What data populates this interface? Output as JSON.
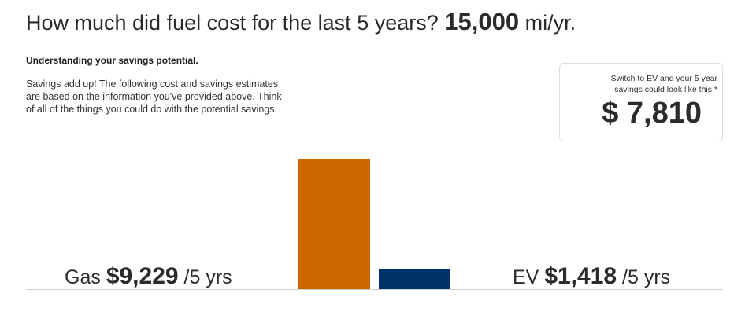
{
  "headline": {
    "question": "How much did fuel cost for the last 5 years?",
    "miles": "15,000",
    "unit": "mi/yr."
  },
  "info": {
    "heading": "Understanding your savings potential.",
    "paragraph": "Savings add up! The following cost and savings estimates are based on the information you've provided above. Think of all of the things you could do with the potential savings."
  },
  "savings_card": {
    "note": "Switch to EV and your 5 year savings could look like this:*",
    "amount": "$ 7,810"
  },
  "gas": {
    "prefix": "Gas",
    "value": "$9,229",
    "suffix": "/5 yrs"
  },
  "ev": {
    "prefix": "EV",
    "value": "$1,418",
    "suffix": "/5 yrs"
  },
  "colors": {
    "gas_bar": "#cc6600",
    "ev_bar": "#00326a",
    "baseline": "#d0d0d0"
  },
  "chart_data": {
    "type": "bar",
    "categories": [
      "Gas",
      "EV"
    ],
    "values": [
      9229,
      1418
    ],
    "ylim": [
      0,
      9229
    ]
  }
}
